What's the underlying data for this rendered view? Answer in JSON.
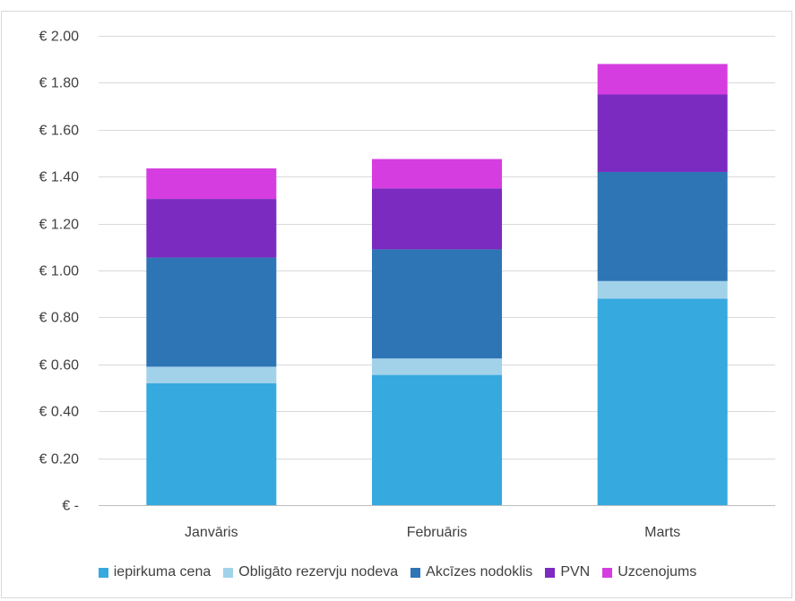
{
  "chart_data": {
    "type": "bar",
    "stacked": true,
    "categories": [
      "Janvāris",
      "Februāris",
      "Marts"
    ],
    "series": [
      {
        "name": "iepirkuma cena",
        "color": "#36a9df",
        "values": [
          0.52,
          0.555,
          0.88
        ]
      },
      {
        "name": "Obligāto rezervju nodeva",
        "color": "#a2d2ea",
        "values": [
          0.07,
          0.07,
          0.075
        ]
      },
      {
        "name": "Akcīzes nodoklis",
        "color": "#2e75b6",
        "values": [
          0.465,
          0.465,
          0.465
        ]
      },
      {
        "name": "PVN",
        "color": "#7b2bbf",
        "values": [
          0.25,
          0.26,
          0.33
        ]
      },
      {
        "name": "Uzcenojums",
        "color": "#d63de0",
        "values": [
          0.13,
          0.125,
          0.13
        ]
      }
    ],
    "yticks": [
      0,
      0.2,
      0.4,
      0.6,
      0.8,
      1.0,
      1.2,
      1.4,
      1.6,
      1.8,
      2.0
    ],
    "ytick_labels": [
      "€ -",
      "€ 0.20",
      "€ 0.40",
      "€ 0.60",
      "€ 0.80",
      "€ 1.00",
      "€ 1.20",
      "€ 1.40",
      "€ 1.60",
      "€ 1.80",
      "€ 2.00"
    ],
    "ylim": [
      0,
      2.0
    ],
    "grid": true,
    "legend_position": "bottom"
  }
}
